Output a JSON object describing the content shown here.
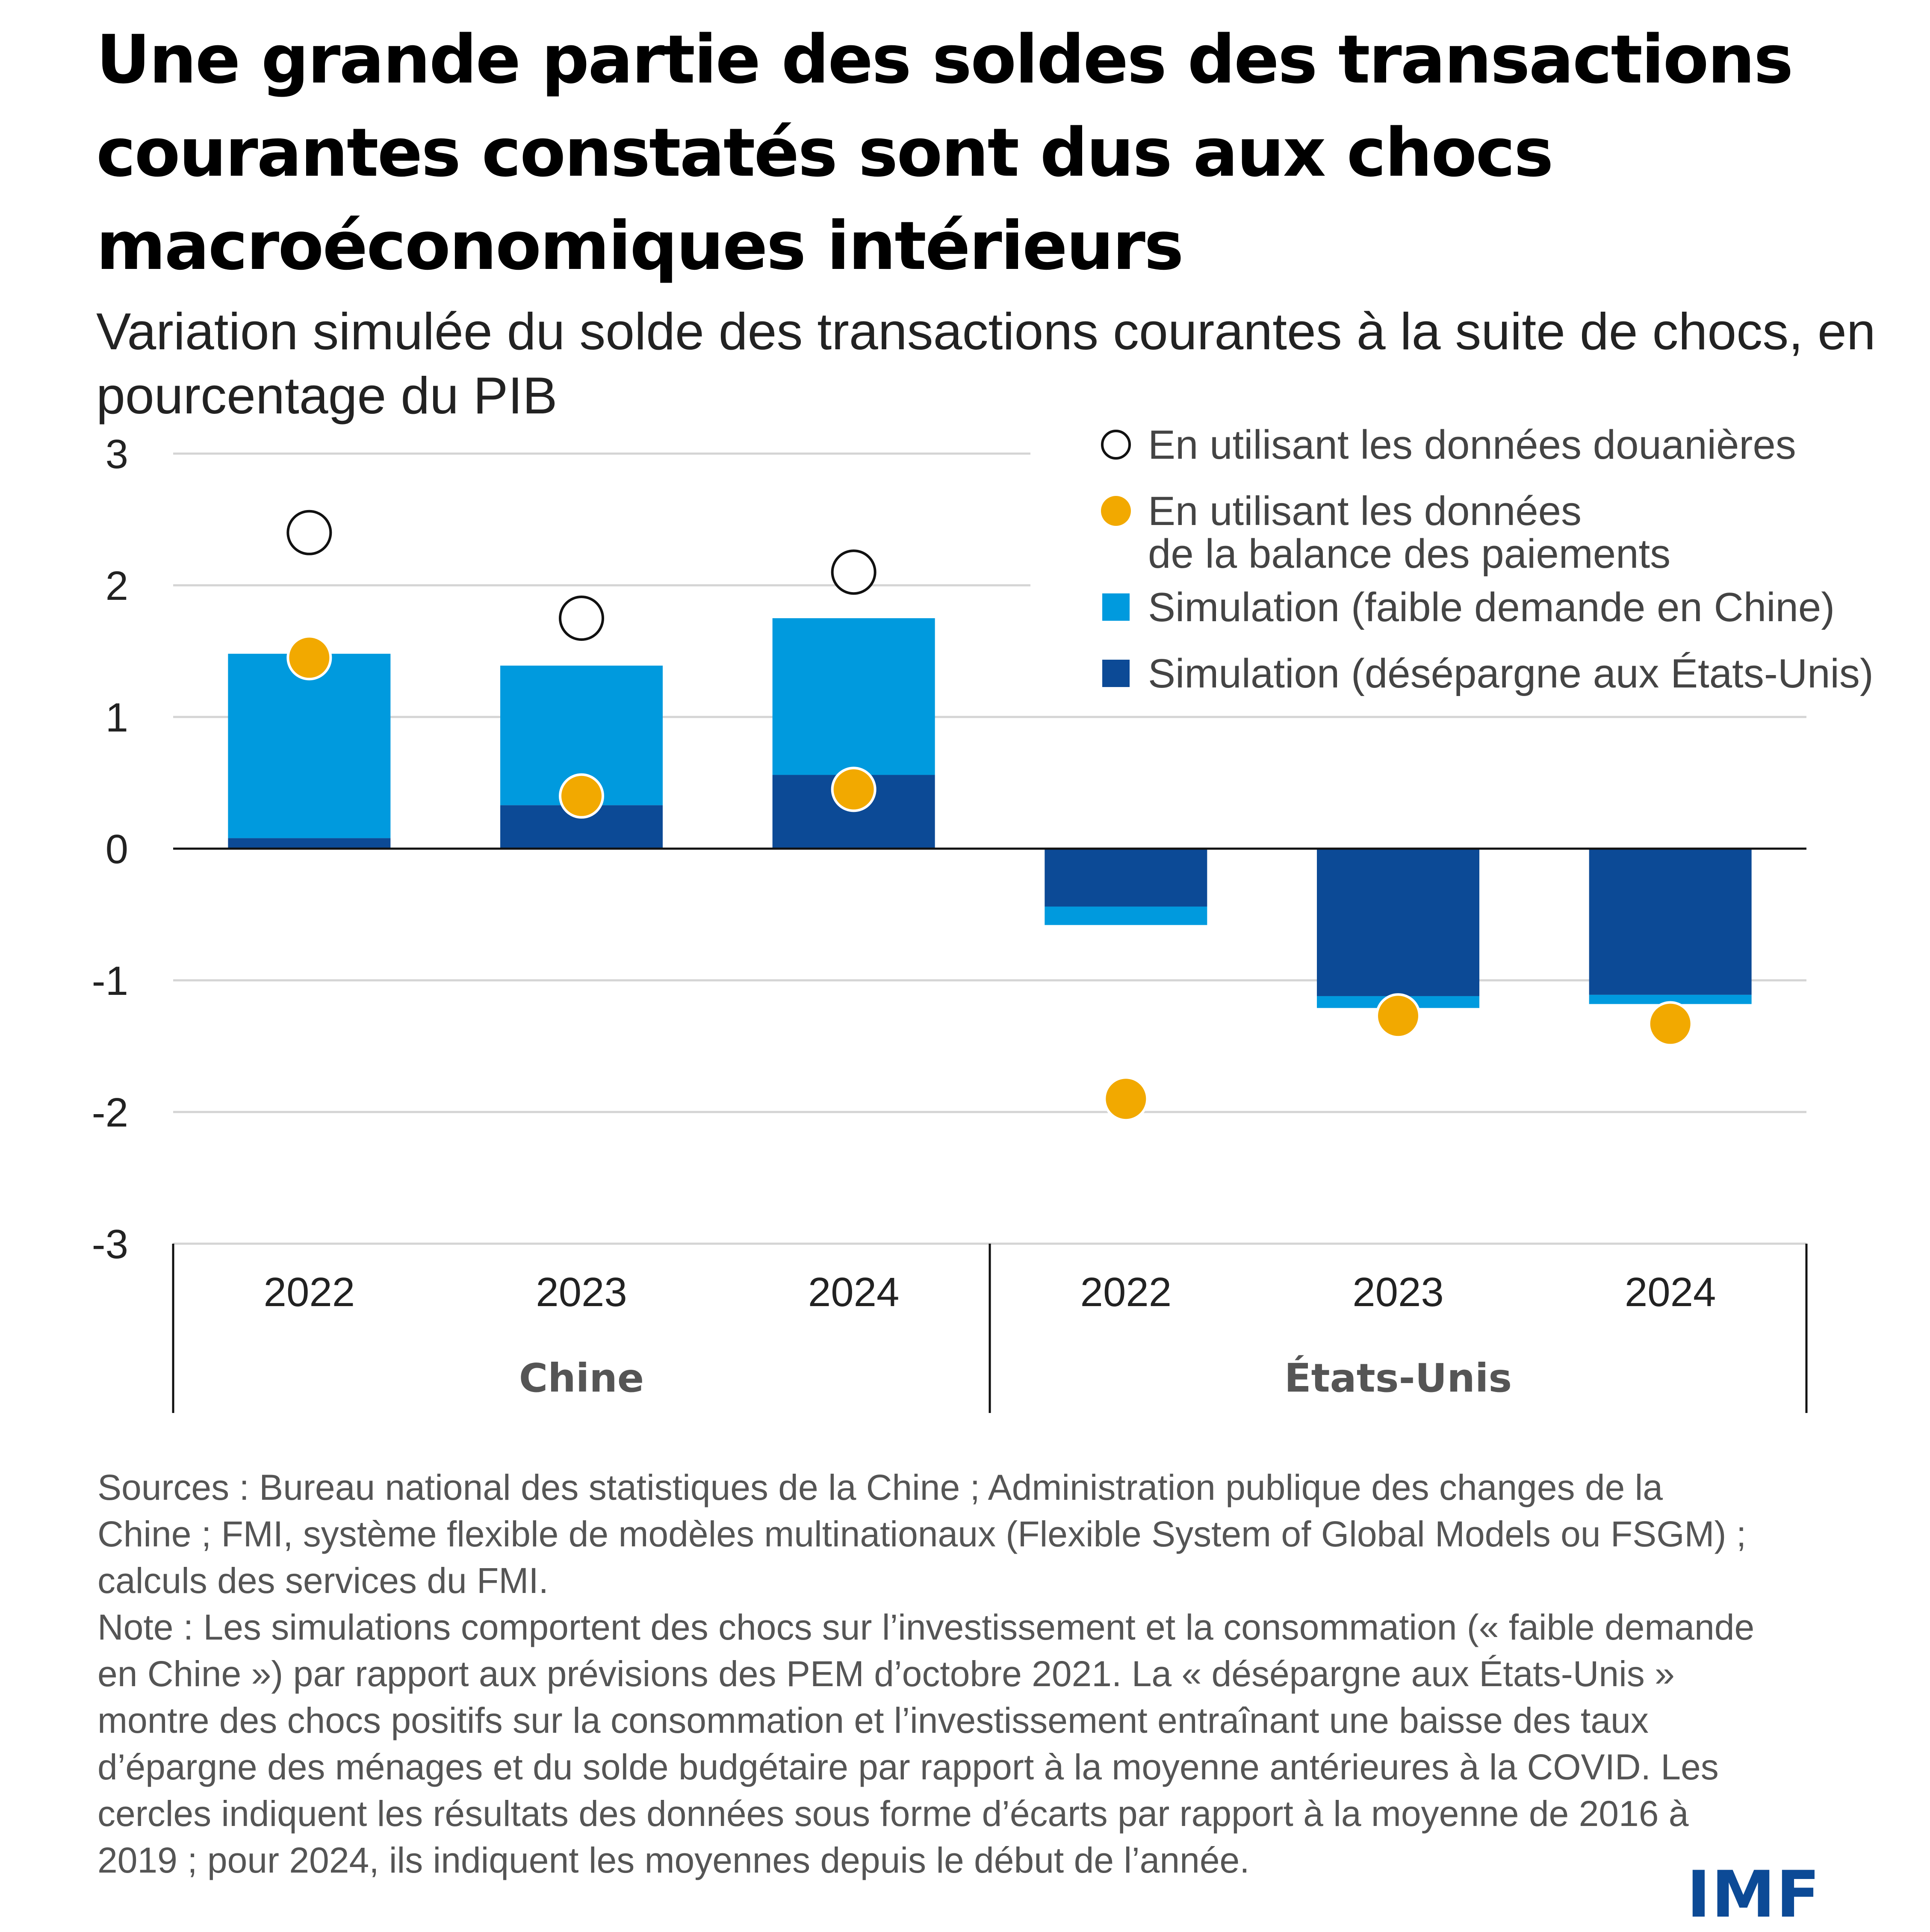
{
  "header": {
    "title": "Une grande partie des soldes des transactions courantes constatés sont dus aux chocs macroéconomiques intérieurs",
    "subtitle": "Variation simulée du solde des transactions courantes à la suite de chocs, en pourcentage du PIB"
  },
  "chart_data": {
    "type": "bar",
    "stacked": true,
    "groups": [
      "Chine",
      "États-Unis"
    ],
    "categories": [
      "2022",
      "2023",
      "2024",
      "2022",
      "2023",
      "2024"
    ],
    "category_groups": [
      "Chine",
      "Chine",
      "Chine",
      "États-Unis",
      "États-Unis",
      "États-Unis"
    ],
    "ylim": [
      -3,
      3
    ],
    "yticks": [
      "3",
      "2",
      "1",
      "0",
      "-1",
      "-2",
      "-3"
    ],
    "ytick_values": [
      3,
      2,
      1,
      0,
      -1,
      -2,
      -3
    ],
    "grid": true,
    "legend_position": "top-right",
    "series": [
      {
        "name": "Simulation (désépargne aux États-Unis)",
        "kind": "bar",
        "color": "#0c4a96",
        "values": [
          0.08,
          0.33,
          0.56,
          -0.44,
          -1.12,
          -1.11
        ]
      },
      {
        "name": "Simulation (faible demande en Chine)",
        "kind": "bar",
        "color": "#009ade",
        "values": [
          1.4,
          1.06,
          1.19,
          -0.14,
          -0.09,
          -0.07
        ]
      },
      {
        "name": "En utilisant les données douanières",
        "kind": "marker",
        "marker": "open-circle",
        "values": [
          2.4,
          1.75,
          2.1,
          null,
          null,
          null
        ]
      },
      {
        "name": "En utilisant les données de la balance des paiements",
        "kind": "marker",
        "marker": "filled-circle",
        "color": "#f2a900",
        "values": [
          1.45,
          0.4,
          0.45,
          -1.9,
          -1.27,
          -1.33
        ]
      }
    ],
    "legend": [
      {
        "label": "En utilisant les données douanières",
        "marker": "open-circle"
      },
      {
        "label": "En utilisant les données de la balance des paiements",
        "lines": [
          "En utilisant les données",
          "de la balance des paiements"
        ],
        "marker": "filled-circle",
        "color": "#f2a900"
      },
      {
        "label": "Simulation (faible demande en Chine)",
        "marker": "square",
        "color": "#009ade"
      },
      {
        "label": "Simulation (désépargne aux États-Unis)",
        "marker": "square",
        "color": "#0c4a96"
      }
    ]
  },
  "notes": {
    "sources": "Sources : Bureau national des statistiques de la Chine ; Administration publique des changes de la Chine ; FMI, système flexible de modèles multinationaux (Flexible System of Global Models ou FSGM) ; calculs des services du FMI.",
    "note": "Note : Les simulations comportent des chocs sur l’investissement et la consommation (« faible demande en Chine ») par rapport aux prévisions des PEM d’octobre 2021. La « désépargne aux États-Unis » montre des chocs positifs sur la consommation et l’investissement entraînant une baisse des taux d’épargne des ménages et du solde budgétaire par rapport à la moyenne antérieures à la COVID. Les cercles indiquent les résultats des données sous forme d’écarts par rapport à la moyenne de 2016 à 2019 ; pour 2024, ils indiquent les moyennes depuis le début de l’année."
  },
  "logo": {
    "text": "IMF",
    "color": "#0c4a96"
  }
}
